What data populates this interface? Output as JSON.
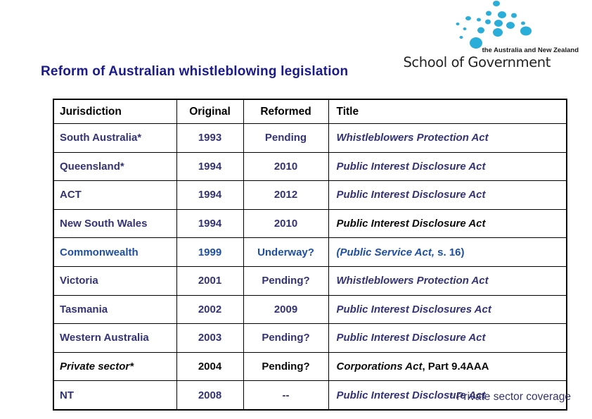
{
  "title": {
    "text": "Reform of Australian whistleblowing legislation",
    "color": "#1a1a8c"
  },
  "logo": {
    "tagline": "the Australia and New Zealand",
    "name": "School of Government",
    "dot_color": "#29add9"
  },
  "table": {
    "headers": [
      "Jurisdiction",
      "Original",
      "Reformed",
      "Title"
    ],
    "header_color": "#000000",
    "rows": [
      {
        "jurisdiction": "South Australia*",
        "original": "1993",
        "reformed": "Pending",
        "title": [
          {
            "text": "Whistleblowers Protection Act",
            "italic": true
          }
        ],
        "color": "#333375"
      },
      {
        "jurisdiction": "Queensland*",
        "original": "1994",
        "reformed": "2010",
        "title": [
          {
            "text": "Public Interest Disclosure Act",
            "italic": true
          }
        ],
        "color": "#333375"
      },
      {
        "jurisdiction": "ACT",
        "original": "1994",
        "reformed": "2012",
        "title": [
          {
            "text": "Public Interest Disclosure Act",
            "italic": true
          }
        ],
        "color": "#333375"
      },
      {
        "jurisdiction": "New South Wales",
        "original": "1994",
        "reformed": "2010",
        "title": [
          {
            "text": "Public Interest Disclosure Act",
            "italic": true
          }
        ],
        "color": "#333375",
        "title_color": "#0b0b0b"
      },
      {
        "jurisdiction": "Commonwealth",
        "original": "1999",
        "reformed": "Underway?",
        "title": [
          {
            "text": "(Public Service Act,",
            "italic": true
          },
          {
            "text": " s. 16)",
            "italic": false
          }
        ],
        "color": "#1e4fa5"
      },
      {
        "jurisdiction": "Victoria",
        "original": "2001",
        "reformed": "Pending?",
        "title": [
          {
            "text": "Whistleblowers Protection Act",
            "italic": true
          }
        ],
        "color": "#333375"
      },
      {
        "jurisdiction": "Tasmania",
        "original": "2002",
        "reformed": "2009",
        "title": [
          {
            "text": "Public Interest Disclosures Act",
            "italic": true
          }
        ],
        "color": "#333375"
      },
      {
        "jurisdiction": "Western Australia",
        "original": "2003",
        "reformed": "Pending?",
        "title": [
          {
            "text": "Public Interest Disclosure Act",
            "italic": true
          }
        ],
        "color": "#333375"
      },
      {
        "jurisdiction": "Private sector*",
        "jurisdiction_italic": true,
        "original": "2004",
        "reformed": "Pending?",
        "title": [
          {
            "text": "Corporations Act",
            "italic": true
          },
          {
            "text": ", Part 9.4AAA",
            "italic": false
          }
        ],
        "color": "#0b0b0b"
      },
      {
        "jurisdiction": "NT",
        "original": "2008",
        "reformed": "--",
        "title": [
          {
            "text": "Public Interest Disclosure Act",
            "italic": true
          }
        ],
        "color": "#333375"
      }
    ]
  },
  "footnote": {
    "text": "* Private sector coverage",
    "color": "#33336b"
  }
}
